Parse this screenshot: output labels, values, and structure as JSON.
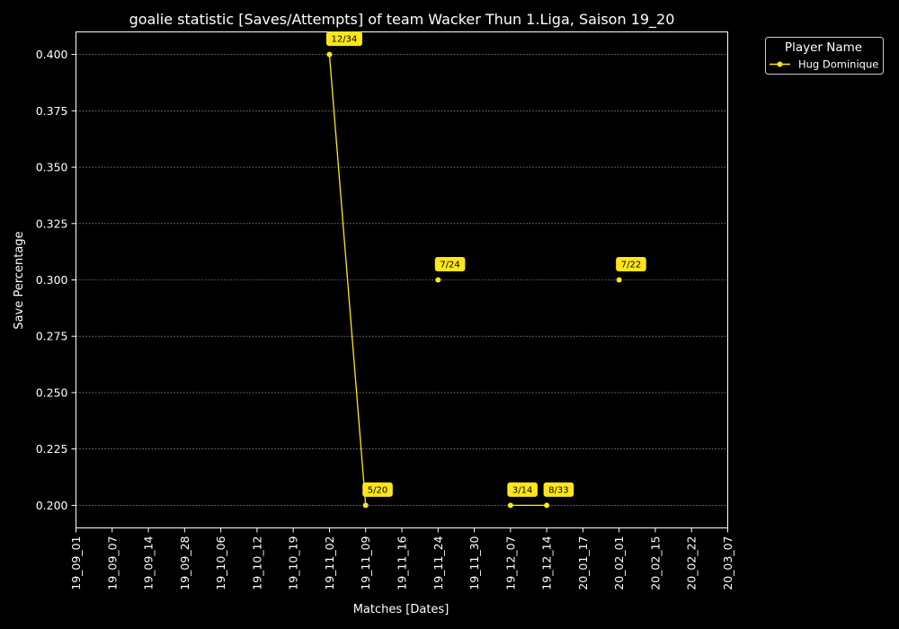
{
  "chart_data": {
    "type": "line",
    "title": "goalie statistic [Saves/Attempts] of team Wacker Thun 1.Liga, Saison 19_20",
    "xlabel": "Matches [Dates]",
    "ylabel": "Save Percentage",
    "categories": [
      "19_09_01",
      "19_09_07",
      "19_09_14",
      "19_09_28",
      "19_10_06",
      "19_10_12",
      "19_10_19",
      "19_11_02",
      "19_11_09",
      "19_11_16",
      "19_11_24",
      "19_11_30",
      "19_12_07",
      "19_12_14",
      "20_01_17",
      "20_02_01",
      "20_02_15",
      "20_02_22",
      "20_03_07"
    ],
    "yticks": [
      "0.200",
      "0.225",
      "0.250",
      "0.275",
      "0.300",
      "0.325",
      "0.350",
      "0.375",
      "0.400"
    ],
    "ylim": [
      0.19,
      0.41
    ],
    "grid": true,
    "legend": {
      "title": "Player Name",
      "placement": "upper-right-outside"
    },
    "series": [
      {
        "name": "Hug Dominique",
        "color": "#ffe619",
        "values": [
          null,
          null,
          null,
          null,
          null,
          null,
          null,
          0.4,
          0.2,
          null,
          0.3,
          null,
          0.2,
          0.2,
          null,
          0.3,
          null,
          null,
          null
        ],
        "labels": [
          null,
          null,
          null,
          null,
          null,
          null,
          null,
          "12/34",
          "5/20",
          null,
          "7/24",
          null,
          "3/14",
          "8/33",
          null,
          "7/22",
          null,
          null,
          null
        ]
      }
    ]
  }
}
